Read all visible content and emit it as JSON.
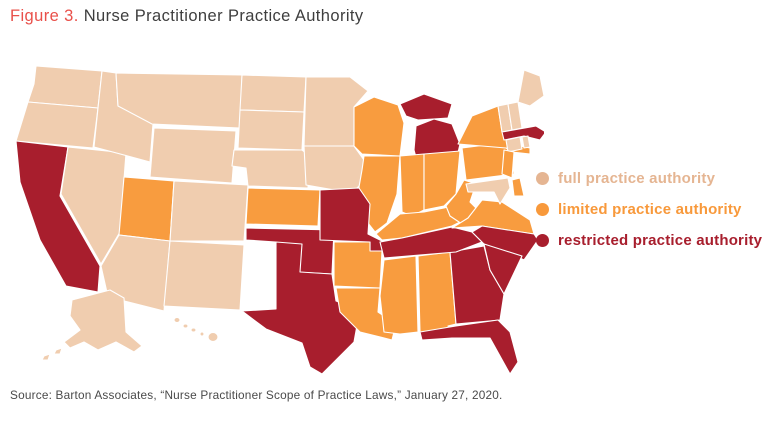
{
  "figure": {
    "title_prefix": "Figure 3.",
    "title": "Nurse Practitioner Practice Authority",
    "title_prefix_color": "#E9504A",
    "title_color": "#3E3E3E"
  },
  "legend": {
    "items": [
      {
        "key": "full",
        "label": "full practice authority",
        "color": "#E5B592",
        "map_color": "#F0CDAF"
      },
      {
        "key": "limited",
        "label": "limited practice authority",
        "color": "#F8993B",
        "map_color": "#F89C3F"
      },
      {
        "key": "restricted",
        "label": "restricted practice authority",
        "color": "#A81E2D",
        "map_color": "#A81E2D"
      }
    ]
  },
  "map": {
    "stroke_color": "#FFFFFF",
    "categories": {
      "full": [
        "WA",
        "OR",
        "ID",
        "MT",
        "WY",
        "NV",
        "AZ",
        "NM",
        "CO",
        "ND",
        "SD",
        "NE",
        "MN",
        "IA",
        "AK",
        "HI",
        "ME",
        "NH",
        "VT",
        "CT",
        "RI",
        "MD"
      ],
      "limited": [
        "UT",
        "KS",
        "WI",
        "IL",
        "IN",
        "OH",
        "KY",
        "WV",
        "VA",
        "PA",
        "NY",
        "NJ",
        "DE",
        "AR",
        "LA",
        "MS",
        "AL"
      ],
      "restricted": [
        "CA",
        "TX",
        "OK",
        "MO",
        "MI",
        "TN",
        "NC",
        "SC",
        "GA",
        "FL",
        "MA"
      ]
    }
  },
  "source": "Source: Barton Associates, “Nurse Practitioner Scope of Practice Laws,” January 27, 2020."
}
